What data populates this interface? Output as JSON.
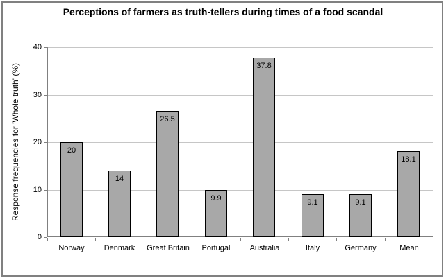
{
  "window": {
    "background": "#ffffff",
    "border_color": "#808080"
  },
  "chart_data": {
    "type": "bar",
    "title": "Perceptions of farmers as truth-tellers during times of a food scandal",
    "ylabel": "Response frequencies for 'Whole truth' (%)",
    "xlabel": "",
    "categories": [
      "Norway",
      "Denmark",
      "Great Britain",
      "Portugal",
      "Australia",
      "Italy",
      "Germany",
      "Mean"
    ],
    "values": [
      20,
      14,
      26.5,
      9.9,
      37.8,
      9.1,
      9.1,
      18.1
    ],
    "data_labels": [
      "20",
      "14",
      "26.5",
      "9.9",
      "37.8",
      "9.1",
      "9.1",
      "18.1"
    ],
    "ylim": [
      0,
      40
    ],
    "y_major_ticks": [
      0,
      10,
      20,
      30,
      40
    ],
    "y_gridline_step": 5,
    "grid": true,
    "legend": false,
    "data_labels_visible": true,
    "colors": {
      "bar_fill": "#a8a8a8",
      "bar_border": "#000000",
      "gridline": "#c6c6c6",
      "axis": "#808080",
      "text": "#000000",
      "frame_border": "#808080",
      "background": "#ffffff"
    }
  }
}
